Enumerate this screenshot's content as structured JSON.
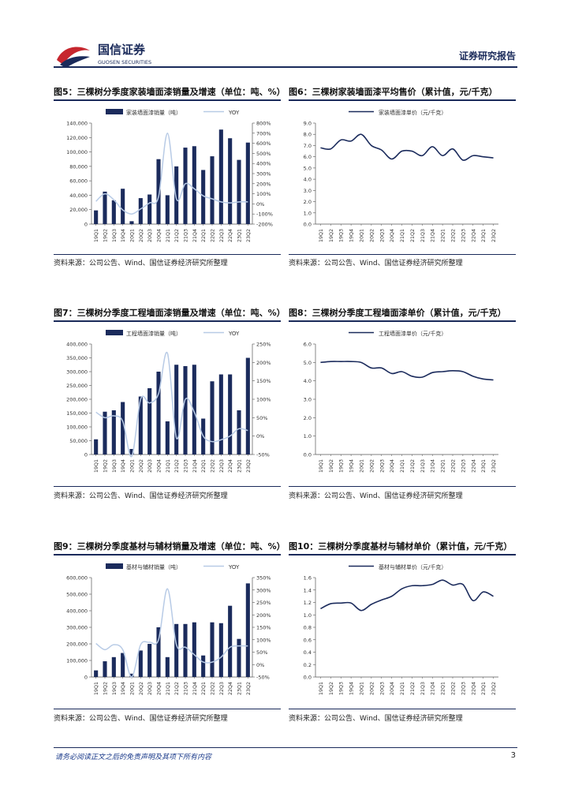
{
  "header": {
    "brand_cn": "国信证券",
    "brand_en": "GUOSEN SECURITIES",
    "doc_type": "证券研究报告"
  },
  "footer": {
    "disclaimer": "请务必阅读正文之后的免责声明及其项下所有内容",
    "page": "3"
  },
  "figures": [
    {
      "id": "f5",
      "title": "图5：三棵树分季度家装墙面漆销量及增速（单位：吨、%）",
      "source": "资料来源：公司公告、Wind、国信证券经济研究所整理"
    },
    {
      "id": "f6",
      "title": "图6：三棵树家装墙面漆平均售价（累计值，元/千克）",
      "source": "资料来源：公司公告、Wind、国信证券经济研究所整理"
    },
    {
      "id": "f7",
      "title": "图7：三棵树分季度工程墙面漆销量及增速（单位：吨、%）",
      "source": "资料来源：公司公告、Wind、国信证券经济研究所整理"
    },
    {
      "id": "f8",
      "title": "图8：三棵树分季度工程墙面漆单价（累计值，元/千克）",
      "source": "资料来源：公司公告、Wind、国信证券经济研究所整理"
    },
    {
      "id": "f9",
      "title": "图9：三棵树分季度基材与辅材销量及增速（单位：吨、%）",
      "source": "资料来源：公司公告、Wind、国信证券经济研究所整理"
    },
    {
      "id": "f10",
      "title": "图10：三棵树分季度基材与辅材单价（累计值，元/千克）",
      "source": "资料来源：公司公告、Wind、国信证券经济研究所整理"
    }
  ],
  "chart_data": [
    {
      "id": "f5",
      "type": "bar+line",
      "categories": [
        "19Q1",
        "19Q2",
        "19Q3",
        "19Q4",
        "20Q1",
        "20Q2",
        "20Q3",
        "20Q4",
        "21Q1",
        "21Q2",
        "21Q3",
        "21Q4",
        "22Q1",
        "22Q2",
        "22Q3",
        "22Q4",
        "23Q1",
        "23Q2"
      ],
      "series": [
        {
          "name": "家装墙面漆销量（吨）",
          "axis": "left",
          "kind": "bar",
          "values": [
            19000,
            45000,
            33000,
            49000,
            4000,
            36000,
            41000,
            90000,
            40000,
            80000,
            106000,
            108000,
            75000,
            94000,
            131000,
            119000,
            89000,
            113000
          ]
        },
        {
          "name": "YOY",
          "axis": "right",
          "kind": "line",
          "values": [
            25,
            100,
            40,
            -60,
            -100,
            -50,
            10,
            70,
            700,
            50,
            200,
            150,
            80,
            50,
            20,
            10,
            20,
            20
          ]
        }
      ],
      "ylim_left": [
        0,
        140000
      ],
      "yticks_left": [
        "0",
        "20,000",
        "40,000",
        "60,000",
        "80,000",
        "100,000",
        "120,000",
        "140,000"
      ],
      "ylim_right": [
        -200,
        800
      ],
      "yticks_right": [
        "-200%",
        "-100%",
        "0%",
        "100%",
        "200%",
        "300%",
        "400%",
        "500%",
        "600%",
        "700%",
        "800%"
      ]
    },
    {
      "id": "f6",
      "type": "line",
      "categories": [
        "19Q1",
        "19Q2",
        "19Q3",
        "19Q4",
        "20Q1",
        "20Q2",
        "20Q3",
        "20Q4",
        "21Q1",
        "21Q2",
        "21Q3",
        "21Q4",
        "22Q1",
        "22Q2",
        "22Q3",
        "22Q4",
        "23Q1",
        "23Q2"
      ],
      "series": [
        {
          "name": "家装墙面漆单价（元/千克）",
          "values": [
            6.8,
            6.7,
            7.5,
            7.4,
            8.0,
            7.0,
            6.6,
            5.8,
            6.5,
            6.5,
            6.1,
            6.9,
            6.1,
            6.7,
            5.7,
            6.1,
            6.0,
            5.9
          ]
        }
      ],
      "ylim": [
        0,
        9
      ],
      "yticks": [
        "0.0",
        "1.0",
        "2.0",
        "3.0",
        "4.0",
        "5.0",
        "6.0",
        "7.0",
        "8.0",
        "9.0"
      ]
    },
    {
      "id": "f7",
      "type": "bar+line",
      "categories": [
        "19Q1",
        "19Q2",
        "19Q3",
        "19Q4",
        "20Q1",
        "20Q2",
        "20Q3",
        "20Q4",
        "21Q1",
        "21Q2",
        "21Q3",
        "21Q4",
        "22Q1",
        "22Q2",
        "22Q3",
        "22Q4",
        "23Q1",
        "23Q2"
      ],
      "series": [
        {
          "name": "工程墙面漆销量（吨）",
          "axis": "left",
          "kind": "bar",
          "values": [
            55000,
            155000,
            160000,
            190000,
            20000,
            210000,
            240000,
            300000,
            120000,
            325000,
            320000,
            325000,
            130000,
            265000,
            290000,
            290000,
            160000,
            350000
          ]
        },
        {
          "name": "YOY",
          "axis": "right",
          "kind": "line",
          "values": [
            65,
            50,
            55,
            40,
            -55,
            100,
            90,
            115,
            225,
            -5,
            100,
            65,
            0,
            -15,
            -10,
            0,
            20,
            15
          ]
        }
      ],
      "ylim_left": [
        0,
        400000
      ],
      "yticks_left": [
        "0",
        "50,000",
        "100,000",
        "150,000",
        "200,000",
        "250,000",
        "300,000",
        "350,000",
        "400,000"
      ],
      "ylim_right": [
        -50,
        250
      ],
      "yticks_right": [
        "-50%",
        "0%",
        "50%",
        "100%",
        "150%",
        "200%",
        "250%"
      ]
    },
    {
      "id": "f8",
      "type": "line",
      "categories": [
        "19Q1",
        "19Q2",
        "19Q3",
        "19Q4",
        "20Q1",
        "20Q2",
        "20Q3",
        "20Q4",
        "21Q1",
        "21Q2",
        "21Q3",
        "21Q4",
        "22Q1",
        "22Q2",
        "22Q3",
        "22Q4",
        "23Q1",
        "23Q2"
      ],
      "series": [
        {
          "name": "工程墙面漆单价（元/千克）",
          "values": [
            5.0,
            5.05,
            5.05,
            5.05,
            5.0,
            4.7,
            4.7,
            4.4,
            4.5,
            4.25,
            4.2,
            4.45,
            4.5,
            4.55,
            4.5,
            4.25,
            4.1,
            4.05
          ]
        }
      ],
      "ylim": [
        0,
        6
      ],
      "yticks": [
        "0.0",
        "1.0",
        "2.0",
        "3.0",
        "4.0",
        "5.0",
        "6.0"
      ]
    },
    {
      "id": "f9",
      "type": "bar+line",
      "categories": [
        "19Q1",
        "19Q2",
        "19Q3",
        "19Q4",
        "20Q1",
        "20Q2",
        "20Q3",
        "20Q4",
        "21Q1",
        "21Q2",
        "21Q3",
        "21Q4",
        "22Q1",
        "22Q2",
        "22Q3",
        "22Q4",
        "23Q1",
        "23Q2"
      ],
      "series": [
        {
          "name": "基材与辅材销量（吨）",
          "axis": "left",
          "kind": "bar",
          "values": [
            40000,
            95000,
            120000,
            145000,
            20000,
            160000,
            200000,
            300000,
            120000,
            320000,
            320000,
            330000,
            130000,
            330000,
            325000,
            430000,
            230000,
            565000
          ]
        },
        {
          "name": "YOY",
          "axis": "right",
          "kind": "line",
          "values": [
            85,
            60,
            80,
            60,
            -50,
            80,
            90,
            100,
            305,
            80,
            70,
            40,
            10,
            10,
            30,
            70,
            75,
            75
          ]
        }
      ],
      "ylim_left": [
        0,
        600000
      ],
      "yticks_left": [
        "0",
        "100,000",
        "200,000",
        "300,000",
        "400,000",
        "500,000",
        "600,000"
      ],
      "ylim_right": [
        -50,
        350
      ],
      "yticks_right": [
        "-50%",
        "0%",
        "50%",
        "100%",
        "150%",
        "200%",
        "250%",
        "300%",
        "350%"
      ]
    },
    {
      "id": "f10",
      "type": "line",
      "categories": [
        "19Q1",
        "19Q2",
        "19Q3",
        "19Q4",
        "20Q1",
        "20Q2",
        "20Q3",
        "20Q4",
        "21Q1",
        "21Q2",
        "21Q3",
        "21Q4",
        "22Q1",
        "22Q2",
        "22Q3",
        "22Q4",
        "23Q1",
        "23Q2"
      ],
      "series": [
        {
          "name": "基材与辅材单价（元/千克）",
          "values": [
            1.1,
            1.18,
            1.19,
            1.19,
            1.07,
            1.17,
            1.24,
            1.3,
            1.42,
            1.47,
            1.47,
            1.49,
            1.56,
            1.48,
            1.49,
            1.23,
            1.37,
            1.3
          ]
        }
      ],
      "ylim": [
        0,
        1.6
      ],
      "yticks": [
        "0.0",
        "0.2",
        "0.4",
        "0.6",
        "0.8",
        "1.0",
        "1.2",
        "1.4",
        "1.6"
      ]
    }
  ],
  "colors": {
    "bar": "#1b2b5c",
    "yoy": "#b8cbe6",
    "price": "#1b2b5c",
    "brand_red": "#c6262e",
    "brand_navy": "#1a2a5a"
  }
}
